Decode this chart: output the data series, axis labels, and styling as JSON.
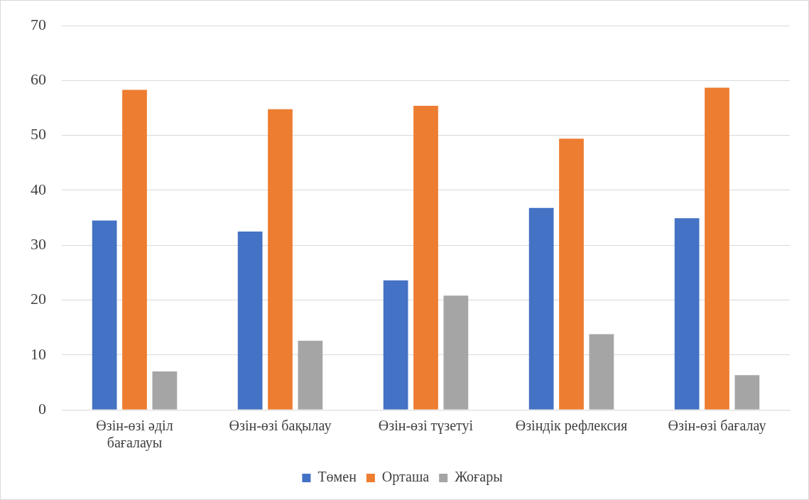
{
  "chart_data": {
    "type": "bar",
    "categories": [
      "Өзін-өзі әділ бағалауы",
      "Өзін-өзі бақылау",
      "Өзін-өзі түзетуі",
      "Өзіндік рефлексия",
      "Өзін-өзі бағалау"
    ],
    "series": [
      {
        "name": "Төмен",
        "color": "#4472c4",
        "values": [
          34.5,
          32.5,
          23.6,
          36.8,
          34.9
        ]
      },
      {
        "name": "Орташа",
        "color": "#ed7d31",
        "values": [
          58.3,
          54.8,
          55.4,
          49.4,
          58.7
        ]
      },
      {
        "name": "Жоғары",
        "color": "#a5a5a5",
        "values": [
          7.0,
          12.6,
          20.8,
          13.8,
          6.3
        ]
      }
    ],
    "ylim": [
      0,
      70
    ],
    "yticks": [
      0,
      10,
      20,
      30,
      40,
      50,
      60,
      70
    ],
    "grid": "y",
    "legend": "bottom"
  }
}
